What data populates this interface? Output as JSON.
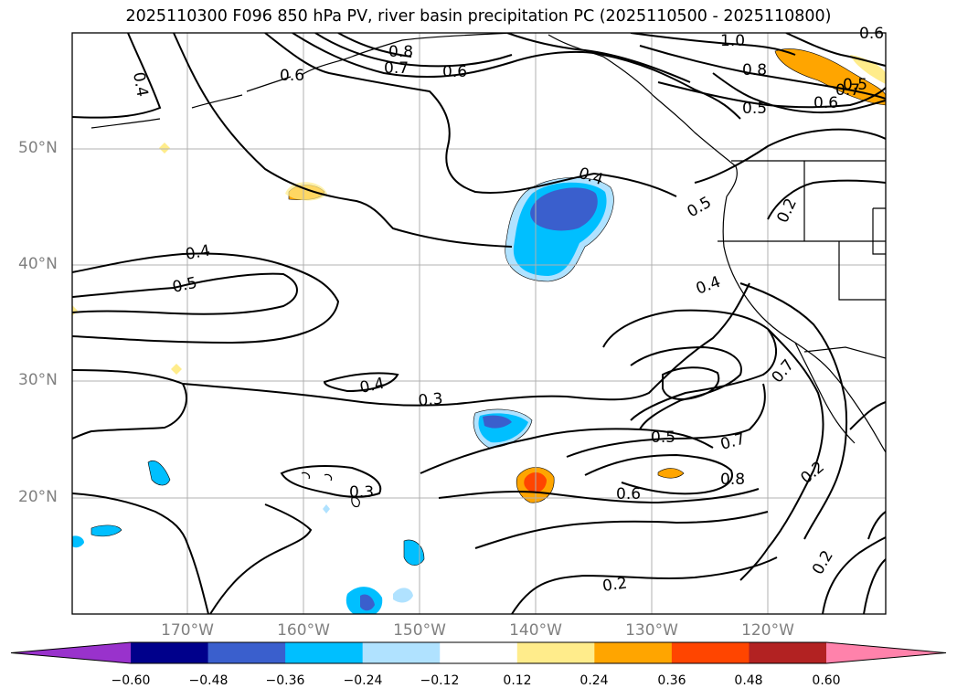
{
  "title": "2025110300 F096 850 hPa PV, river basin precipitation PC (2025110500 - 2025110800)",
  "latitude_labels": [
    "50°N",
    "40°N",
    "30°N",
    "20°N"
  ],
  "longitude_labels": [
    "170°W",
    "160°W",
    "150°W",
    "140°W",
    "130°W",
    "120°W"
  ],
  "contour_labels": [
    "1.0",
    "0.8",
    "0.7",
    "0.6",
    "0.6",
    "0.5",
    "0.4",
    "0.8",
    "0.5",
    "0.6",
    "0.4",
    "0.5",
    "0.2",
    "0.4",
    "0.5",
    "0.4",
    "0.4",
    "0.3",
    "0.7",
    "0.5",
    "0.7",
    "0.8",
    "0.6",
    "0.3",
    "0.2",
    "0.2",
    "0.2",
    "0.6",
    "0.7"
  ],
  "colorbar": {
    "ticks": [
      "−0.60",
      "−0.48",
      "−0.36",
      "−0.24",
      "−0.12",
      "0.12",
      "0.24",
      "0.36",
      "0.48",
      "0.60"
    ],
    "colors": [
      "#9932cc",
      "#00008b",
      "#3a5fcd",
      "#00bfff",
      "#b0e2ff",
      "#ffffff",
      "#ffec8b",
      "#ffa500",
      "#ff4500",
      "#b22222",
      "#ff82ab"
    ]
  },
  "colors": {
    "contour": "#000000",
    "grid": "#b0b0b0",
    "coast": "#000000"
  }
}
